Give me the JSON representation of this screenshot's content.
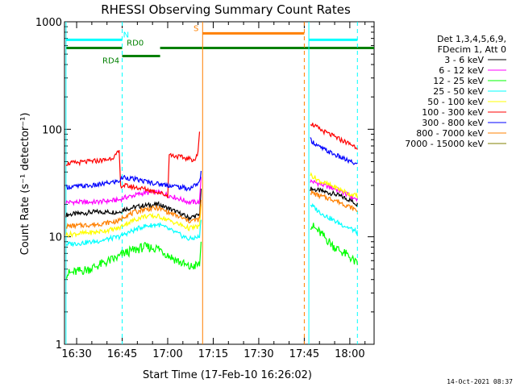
{
  "chart_data": {
    "type": "line",
    "title": "RHESSI Observing Summary Count Rates",
    "xlabel": "Start Time (17-Feb-10 16:26:02)",
    "ylabel": "Count Rate (s⁻¹ detector⁻¹)",
    "yscale": "log",
    "ylim": [
      1,
      1000
    ],
    "xlim_min": [
      986,
      1088
    ],
    "x_ticks": [
      {
        "v": 990,
        "label": "16:30"
      },
      {
        "v": 1005,
        "label": "16:45"
      },
      {
        "v": 1020,
        "label": "17:00"
      },
      {
        "v": 1035,
        "label": "17:15"
      },
      {
        "v": 1050,
        "label": "17:30"
      },
      {
        "v": 1065,
        "label": "17:45"
      },
      {
        "v": 1080,
        "label": "18:00"
      }
    ],
    "y_ticks": [
      {
        "v": 1,
        "label": "1"
      },
      {
        "v": 10,
        "label": "10"
      },
      {
        "v": 100,
        "label": "100"
      },
      {
        "v": 1000,
        "label": "1000"
      }
    ],
    "legend_header": [
      "Det 1,3,4,5,6,9,",
      "FDecim 1, Att 0"
    ],
    "legend_placement": "right",
    "series": [
      {
        "name": "3 - 6 keV",
        "color": "#000000",
        "points": [
          [
            986.5,
            16
          ],
          [
            996,
            17
          ],
          [
            1004,
            17
          ],
          [
            1005.5,
            18
          ],
          [
            1012,
            19.5
          ],
          [
            1017,
            20
          ],
          [
            1021,
            18
          ],
          [
            1027,
            15
          ],
          [
            1030.5,
            16
          ],
          [
            1031,
            28
          ],
          [
            1067,
            28
          ],
          [
            1075,
            25
          ],
          [
            1080,
            22
          ],
          [
            1082.5,
            20
          ]
        ]
      },
      {
        "name": "6 - 12 keV",
        "color": "#ff00ff",
        "points": [
          [
            986.5,
            21
          ],
          [
            996,
            21
          ],
          [
            1004,
            22
          ],
          [
            1005.5,
            23
          ],
          [
            1012,
            25.5
          ],
          [
            1017,
            26
          ],
          [
            1021,
            24
          ],
          [
            1027,
            21
          ],
          [
            1030.5,
            21
          ],
          [
            1031,
            36
          ],
          [
            1067,
            33
          ],
          [
            1075,
            28
          ],
          [
            1080,
            24
          ],
          [
            1082.5,
            22
          ]
        ]
      },
      {
        "name": "12 - 25 keV",
        "color": "#00ff00",
        "points": [
          [
            986.5,
            4.5
          ],
          [
            994,
            5
          ],
          [
            1001,
            6
          ],
          [
            1004,
            6.5
          ],
          [
            1005.5,
            7
          ],
          [
            1012,
            8
          ],
          [
            1017,
            7.8
          ],
          [
            1021,
            6.5
          ],
          [
            1027,
            5.2
          ],
          [
            1030.5,
            5.5
          ],
          [
            1031,
            9
          ],
          [
            1067,
            13
          ],
          [
            1070,
            11
          ],
          [
            1075,
            8
          ],
          [
            1080,
            6.5
          ],
          [
            1082.5,
            5.5
          ]
        ]
      },
      {
        "name": "25 - 50 keV",
        "color": "#00ffff",
        "points": [
          [
            986.5,
            8.5
          ],
          [
            996,
            9
          ],
          [
            1004,
            10
          ],
          [
            1005.5,
            10.5
          ],
          [
            1012,
            12.5
          ],
          [
            1017,
            13
          ],
          [
            1021,
            11.5
          ],
          [
            1027,
            9.5
          ],
          [
            1030.5,
            10
          ],
          [
            1031,
            15
          ],
          [
            1067,
            20
          ],
          [
            1070,
            17
          ],
          [
            1075,
            14
          ],
          [
            1080,
            12
          ],
          [
            1082.5,
            11
          ]
        ]
      },
      {
        "name": "50 - 100 keV",
        "color": "#ffff00",
        "points": [
          [
            986.5,
            10.5
          ],
          [
            996,
            11
          ],
          [
            1004,
            12
          ],
          [
            1005.5,
            13
          ],
          [
            1012,
            15.5
          ],
          [
            1017,
            15.5
          ],
          [
            1021,
            14
          ],
          [
            1027,
            12
          ],
          [
            1030.5,
            12.5
          ],
          [
            1031,
            20
          ],
          [
            1067,
            38
          ],
          [
            1070,
            33
          ],
          [
            1075,
            29
          ],
          [
            1080,
            25
          ],
          [
            1082.5,
            24
          ]
        ]
      },
      {
        "name": "100 - 300 keV",
        "color": "#ff0000",
        "points": [
          [
            986.5,
            48
          ],
          [
            994,
            50
          ],
          [
            1000,
            52
          ],
          [
            1003,
            57
          ],
          [
            1004,
            63
          ],
          [
            1004.5,
            30
          ],
          [
            1005.5,
            30
          ],
          [
            1012,
            28
          ],
          [
            1017,
            26
          ],
          [
            1020,
            24
          ],
          [
            1020.5,
            58
          ],
          [
            1027,
            53
          ],
          [
            1029,
            52
          ],
          [
            1030,
            60
          ],
          [
            1030.5,
            95
          ],
          [
            1067,
            115
          ],
          [
            1070,
            100
          ],
          [
            1075,
            85
          ],
          [
            1080,
            73
          ],
          [
            1082.5,
            68
          ]
        ]
      },
      {
        "name": "300 - 800 keV",
        "color": "#0000ff",
        "points": [
          [
            986.5,
            29
          ],
          [
            996,
            30
          ],
          [
            1004,
            33
          ],
          [
            1005.5,
            36
          ],
          [
            1012,
            33
          ],
          [
            1017,
            31
          ],
          [
            1021,
            30
          ],
          [
            1027,
            28
          ],
          [
            1030.5,
            32
          ],
          [
            1031,
            40
          ],
          [
            1067,
            80
          ],
          [
            1070,
            68
          ],
          [
            1075,
            58
          ],
          [
            1080,
            50
          ],
          [
            1082.5,
            47
          ]
        ]
      },
      {
        "name": "800 - 7000 keV",
        "color": "#ff8000",
        "points": [
          [
            986.5,
            12.5
          ],
          [
            996,
            13
          ],
          [
            1004,
            14
          ],
          [
            1005.5,
            15.5
          ],
          [
            1012,
            18
          ],
          [
            1017,
            18.5
          ],
          [
            1021,
            16.5
          ],
          [
            1027,
            14
          ],
          [
            1030.5,
            14.5
          ],
          [
            1031,
            22
          ],
          [
            1067,
            26
          ],
          [
            1070,
            24
          ],
          [
            1075,
            22
          ],
          [
            1080,
            19
          ],
          [
            1082.5,
            17.5
          ]
        ]
      },
      {
        "name": "7000 - 15000 keV",
        "color": "#808000",
        "points": []
      }
    ],
    "gaps": [
      [
        1031.5,
        1066.5
      ]
    ],
    "state_bars": [
      {
        "label": "N",
        "color": "#00ffff",
        "level": 680,
        "segments": [
          [
            986.5,
            1005
          ],
          [
            1066.5,
            1082.5
          ]
        ],
        "label_at": 1005.3
      },
      {
        "label": "S",
        "color": "#ff8000",
        "level": 780,
        "segments": [
          [
            1031.5,
            1065
          ]
        ],
        "label_at": 1028.5
      },
      {
        "label": "RD4",
        "color": "#008000",
        "level": 480,
        "segments": [
          [
            1005,
            1017.5
          ]
        ],
        "label_at": 998.5
      },
      {
        "label": "RD0",
        "color": "#008000",
        "level": 570,
        "segments": [
          [
            986.5,
            1005
          ],
          [
            1017.5,
            1088
          ]
        ],
        "label_at": 1006.5
      }
    ],
    "markers": [
      {
        "x": 986.5,
        "color": "#00ffff",
        "style": "solid"
      },
      {
        "x": 1005,
        "color": "#00ffff",
        "style": "dashed"
      },
      {
        "x": 1066.5,
        "color": "#00ffff",
        "style": "solid"
      },
      {
        "x": 1082.5,
        "color": "#00ffff",
        "style": "dashed"
      },
      {
        "x": 1031.5,
        "color": "#ff8000",
        "style": "solid"
      },
      {
        "x": 1065,
        "color": "#ff8000",
        "style": "dashed"
      }
    ],
    "grid": false
  },
  "footer": {
    "timestamp": "14-Oct-2021 08:37"
  }
}
